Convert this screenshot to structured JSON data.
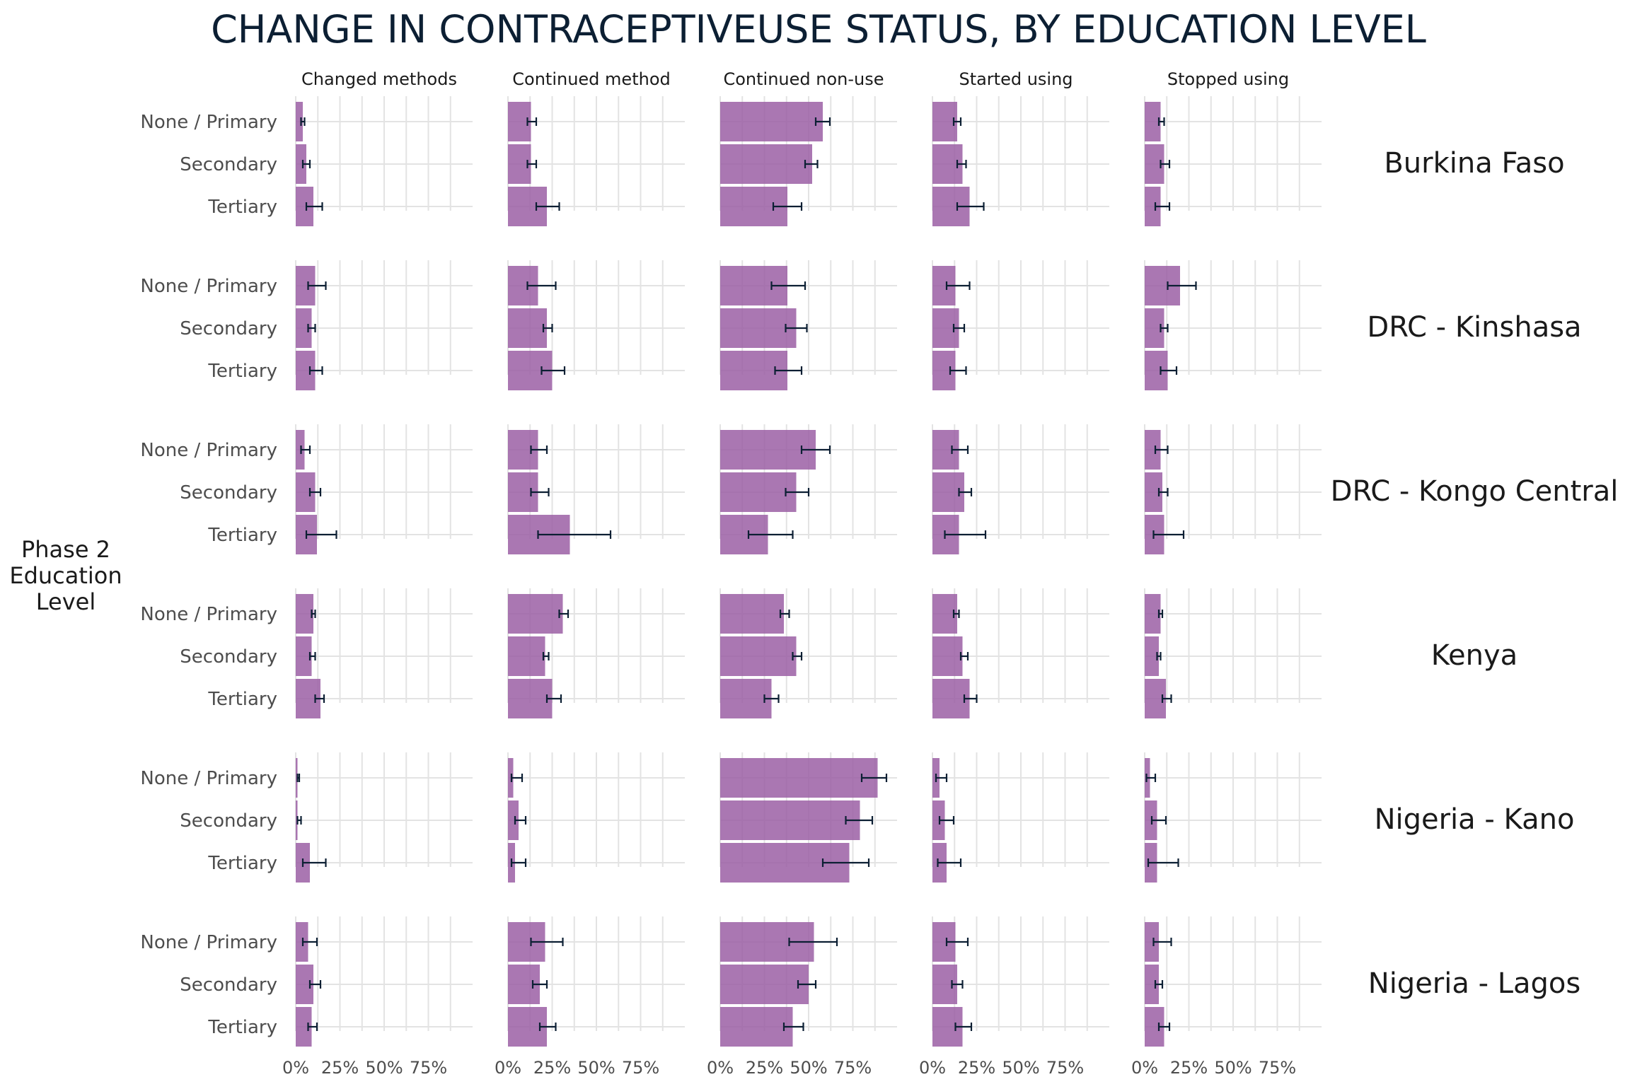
{
  "chart_data": {
    "type": "bar",
    "title": "CHANGE IN CONTRACEPTIVEUSE STATUS, BY EDUCATION LEVEL",
    "ylabel": "Phase 2\nEducation\nLevel",
    "xlim": [
      0,
      1
    ],
    "x_ticks": [
      "0%",
      "25%",
      "50%",
      "75%"
    ],
    "x_tick_values": [
      0,
      0.25,
      0.5,
      0.75
    ],
    "categories": [
      "None / Primary",
      "Secondary",
      "Tertiary"
    ],
    "columns": [
      "Changed methods",
      "Continued method",
      "Continued non-use",
      "Started using",
      "Stopped using"
    ],
    "grid": true,
    "bar_color": "#9b5fa5",
    "errorbar_color": "#0c1f33",
    "panels": [
      {
        "name": "Burkina Faso",
        "values": [
          [
            [
              0.04,
              0.03,
              0.05
            ],
            [
              0.06,
              0.04,
              0.08
            ],
            [
              0.1,
              0.06,
              0.15
            ]
          ],
          [
            [
              0.13,
              0.11,
              0.16
            ],
            [
              0.13,
              0.11,
              0.16
            ],
            [
              0.22,
              0.16,
              0.29
            ]
          ],
          [
            [
              0.58,
              0.54,
              0.62
            ],
            [
              0.52,
              0.48,
              0.55
            ],
            [
              0.38,
              0.3,
              0.46
            ]
          ],
          [
            [
              0.14,
              0.12,
              0.16
            ],
            [
              0.17,
              0.14,
              0.19
            ],
            [
              0.21,
              0.14,
              0.29
            ]
          ],
          [
            [
              0.09,
              0.08,
              0.11
            ],
            [
              0.11,
              0.09,
              0.14
            ],
            [
              0.09,
              0.06,
              0.14
            ]
          ]
        ]
      },
      {
        "name": "DRC - Kinshasa",
        "values": [
          [
            [
              0.11,
              0.07,
              0.17
            ],
            [
              0.09,
              0.07,
              0.11
            ],
            [
              0.11,
              0.08,
              0.15
            ]
          ],
          [
            [
              0.17,
              0.11,
              0.27
            ],
            [
              0.22,
              0.2,
              0.25
            ],
            [
              0.25,
              0.19,
              0.32
            ]
          ],
          [
            [
              0.38,
              0.29,
              0.48
            ],
            [
              0.43,
              0.37,
              0.49
            ],
            [
              0.38,
              0.31,
              0.46
            ]
          ],
          [
            [
              0.13,
              0.08,
              0.21
            ],
            [
              0.15,
              0.12,
              0.18
            ],
            [
              0.13,
              0.1,
              0.19
            ]
          ],
          [
            [
              0.2,
              0.13,
              0.29
            ],
            [
              0.11,
              0.09,
              0.13
            ],
            [
              0.13,
              0.09,
              0.18
            ]
          ]
        ]
      },
      {
        "name": "DRC - Kongo Central",
        "values": [
          [
            [
              0.05,
              0.03,
              0.08
            ],
            [
              0.11,
              0.08,
              0.14
            ],
            [
              0.12,
              0.06,
              0.23
            ]
          ],
          [
            [
              0.17,
              0.13,
              0.22
            ],
            [
              0.17,
              0.13,
              0.23
            ],
            [
              0.35,
              0.17,
              0.58
            ]
          ],
          [
            [
              0.54,
              0.46,
              0.62
            ],
            [
              0.43,
              0.37,
              0.5
            ],
            [
              0.27,
              0.16,
              0.41
            ]
          ],
          [
            [
              0.15,
              0.11,
              0.2
            ],
            [
              0.18,
              0.15,
              0.22
            ],
            [
              0.15,
              0.07,
              0.3
            ]
          ],
          [
            [
              0.09,
              0.06,
              0.13
            ],
            [
              0.1,
              0.08,
              0.13
            ],
            [
              0.11,
              0.05,
              0.22
            ]
          ]
        ]
      },
      {
        "name": "Kenya",
        "values": [
          [
            [
              0.1,
              0.09,
              0.11
            ],
            [
              0.09,
              0.08,
              0.11
            ],
            [
              0.14,
              0.11,
              0.16
            ]
          ],
          [
            [
              0.31,
              0.29,
              0.34
            ],
            [
              0.21,
              0.2,
              0.23
            ],
            [
              0.25,
              0.22,
              0.3
            ]
          ],
          [
            [
              0.36,
              0.34,
              0.39
            ],
            [
              0.43,
              0.41,
              0.46
            ],
            [
              0.29,
              0.25,
              0.33
            ]
          ],
          [
            [
              0.14,
              0.12,
              0.15
            ],
            [
              0.17,
              0.16,
              0.2
            ],
            [
              0.21,
              0.18,
              0.25
            ]
          ],
          [
            [
              0.09,
              0.08,
              0.1
            ],
            [
              0.08,
              0.07,
              0.09
            ],
            [
              0.12,
              0.1,
              0.15
            ]
          ]
        ]
      },
      {
        "name": "Nigeria - Kano",
        "values": [
          [
            [
              0.01,
              0.01,
              0.02
            ],
            [
              0.01,
              0.01,
              0.03
            ],
            [
              0.08,
              0.04,
              0.17
            ]
          ],
          [
            [
              0.03,
              0.02,
              0.08
            ],
            [
              0.06,
              0.04,
              0.1
            ],
            [
              0.04,
              0.02,
              0.1
            ]
          ],
          [
            [
              0.89,
              0.8,
              0.94
            ],
            [
              0.79,
              0.71,
              0.86
            ],
            [
              0.73,
              0.58,
              0.84
            ]
          ],
          [
            [
              0.04,
              0.02,
              0.08
            ],
            [
              0.07,
              0.04,
              0.12
            ],
            [
              0.08,
              0.03,
              0.16
            ]
          ],
          [
            [
              0.03,
              0.01,
              0.06
            ],
            [
              0.07,
              0.04,
              0.12
            ],
            [
              0.07,
              0.02,
              0.19
            ]
          ]
        ]
      },
      {
        "name": "Nigeria - Lagos",
        "values": [
          [
            [
              0.07,
              0.04,
              0.12
            ],
            [
              0.1,
              0.08,
              0.14
            ],
            [
              0.09,
              0.07,
              0.12
            ]
          ],
          [
            [
              0.21,
              0.13,
              0.31
            ],
            [
              0.18,
              0.14,
              0.22
            ],
            [
              0.22,
              0.18,
              0.27
            ]
          ],
          [
            [
              0.53,
              0.39,
              0.66
            ],
            [
              0.5,
              0.44,
              0.54
            ],
            [
              0.41,
              0.36,
              0.47
            ]
          ],
          [
            [
              0.13,
              0.08,
              0.2
            ],
            [
              0.14,
              0.11,
              0.17
            ],
            [
              0.17,
              0.13,
              0.22
            ]
          ],
          [
            [
              0.08,
              0.05,
              0.15
            ],
            [
              0.08,
              0.06,
              0.1
            ],
            [
              0.11,
              0.08,
              0.14
            ]
          ]
        ]
      }
    ]
  }
}
